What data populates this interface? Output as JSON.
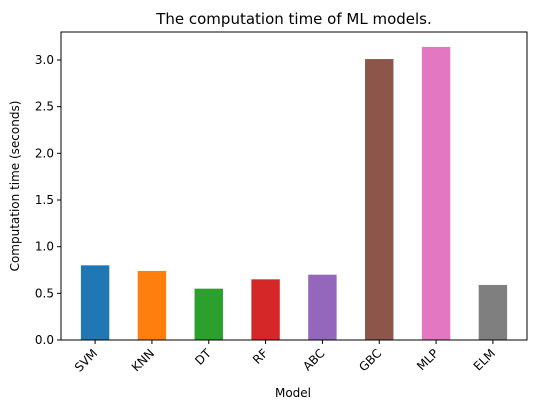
{
  "chart_data": {
    "type": "bar",
    "title": "The computation time of ML models.",
    "xlabel": "Model",
    "ylabel": "Computation time (seconds)",
    "categories": [
      "SVM",
      "KNN",
      "DT",
      "RF",
      "ABC",
      "GBC",
      "MLP",
      "ELM"
    ],
    "values": [
      0.8,
      0.74,
      0.55,
      0.65,
      0.7,
      3.01,
      3.14,
      0.59
    ],
    "colors": [
      "#1f77b4",
      "#ff7f0e",
      "#2ca02c",
      "#d62728",
      "#9467bd",
      "#8c564b",
      "#e377c2",
      "#7f7f7f"
    ],
    "ylim": [
      0,
      3.3
    ],
    "yticks": [
      0.0,
      0.5,
      1.0,
      1.5,
      2.0,
      2.5,
      3.0
    ],
    "ytick_labels": [
      "0.0",
      "0.5",
      "1.0",
      "1.5",
      "2.0",
      "2.5",
      "3.0"
    ],
    "grid": false,
    "legend": "none"
  }
}
